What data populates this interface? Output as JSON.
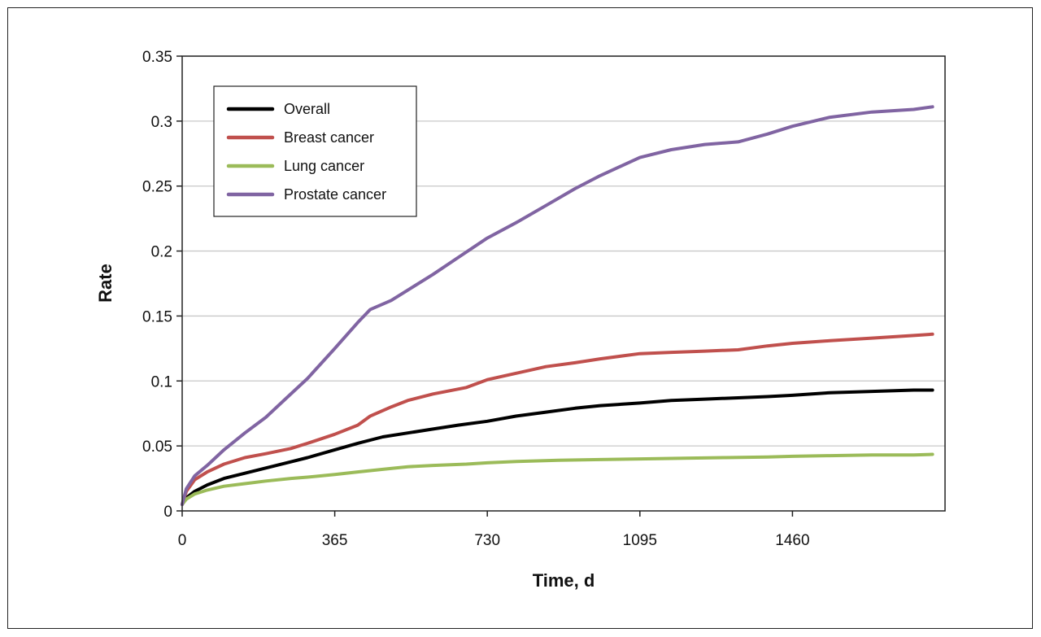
{
  "chart_data": {
    "type": "line",
    "title": "",
    "xlabel": "Time, d",
    "ylabel": "Rate",
    "xlim": [
      0,
      1825
    ],
    "ylim": [
      0,
      0.35
    ],
    "x_ticks": [
      "0",
      "365",
      "730",
      "1095",
      "1460"
    ],
    "x_tick_values": [
      0,
      365,
      730,
      1095,
      1460
    ],
    "y_ticks": [
      "0",
      "0.05",
      "0.1",
      "0.15",
      "0.2",
      "0.25",
      "0.3",
      "0.35"
    ],
    "y_tick_values": [
      0,
      0.05,
      0.1,
      0.15,
      0.2,
      0.25,
      0.3,
      0.35
    ],
    "grid": "horizontal",
    "legend_position": "top-left",
    "series": [
      {
        "name": "Overall",
        "color": "#000000",
        "points": [
          [
            0,
            0.005
          ],
          [
            10,
            0.01
          ],
          [
            30,
            0.015
          ],
          [
            60,
            0.02
          ],
          [
            100,
            0.025
          ],
          [
            150,
            0.029
          ],
          [
            200,
            0.033
          ],
          [
            250,
            0.037
          ],
          [
            300,
            0.041
          ],
          [
            365,
            0.047
          ],
          [
            420,
            0.052
          ],
          [
            480,
            0.057
          ],
          [
            540,
            0.06
          ],
          [
            600,
            0.063
          ],
          [
            660,
            0.066
          ],
          [
            730,
            0.069
          ],
          [
            800,
            0.073
          ],
          [
            870,
            0.076
          ],
          [
            940,
            0.079
          ],
          [
            1000,
            0.081
          ],
          [
            1095,
            0.083
          ],
          [
            1170,
            0.085
          ],
          [
            1250,
            0.086
          ],
          [
            1330,
            0.087
          ],
          [
            1400,
            0.088
          ],
          [
            1460,
            0.089
          ],
          [
            1550,
            0.091
          ],
          [
            1650,
            0.092
          ],
          [
            1750,
            0.093
          ],
          [
            1795,
            0.093
          ]
        ]
      },
      {
        "name": "Breast cancer",
        "color": "#c0504d",
        "points": [
          [
            0,
            0.005
          ],
          [
            10,
            0.015
          ],
          [
            30,
            0.024
          ],
          [
            60,
            0.03
          ],
          [
            100,
            0.036
          ],
          [
            150,
            0.041
          ],
          [
            200,
            0.044
          ],
          [
            260,
            0.048
          ],
          [
            300,
            0.052
          ],
          [
            365,
            0.059
          ],
          [
            420,
            0.066
          ],
          [
            450,
            0.073
          ],
          [
            500,
            0.08
          ],
          [
            540,
            0.085
          ],
          [
            600,
            0.09
          ],
          [
            680,
            0.095
          ],
          [
            730,
            0.101
          ],
          [
            800,
            0.106
          ],
          [
            870,
            0.111
          ],
          [
            940,
            0.114
          ],
          [
            1000,
            0.117
          ],
          [
            1095,
            0.121
          ],
          [
            1170,
            0.122
          ],
          [
            1250,
            0.123
          ],
          [
            1330,
            0.124
          ],
          [
            1400,
            0.127
          ],
          [
            1460,
            0.129
          ],
          [
            1550,
            0.131
          ],
          [
            1650,
            0.133
          ],
          [
            1750,
            0.135
          ],
          [
            1795,
            0.136
          ]
        ]
      },
      {
        "name": "Lung cancer",
        "color": "#9bbb59",
        "points": [
          [
            0,
            0.005
          ],
          [
            10,
            0.009
          ],
          [
            30,
            0.013
          ],
          [
            60,
            0.016
          ],
          [
            100,
            0.019
          ],
          [
            150,
            0.021
          ],
          [
            200,
            0.023
          ],
          [
            260,
            0.025
          ],
          [
            300,
            0.026
          ],
          [
            365,
            0.028
          ],
          [
            420,
            0.03
          ],
          [
            480,
            0.032
          ],
          [
            540,
            0.034
          ],
          [
            600,
            0.035
          ],
          [
            680,
            0.036
          ],
          [
            730,
            0.037
          ],
          [
            800,
            0.038
          ],
          [
            900,
            0.039
          ],
          [
            1000,
            0.0395
          ],
          [
            1095,
            0.04
          ],
          [
            1200,
            0.0405
          ],
          [
            1300,
            0.041
          ],
          [
            1400,
            0.0415
          ],
          [
            1460,
            0.042
          ],
          [
            1550,
            0.0425
          ],
          [
            1650,
            0.043
          ],
          [
            1750,
            0.043
          ],
          [
            1795,
            0.0435
          ]
        ]
      },
      {
        "name": "Prostate cancer",
        "color": "#8064a2",
        "points": [
          [
            0,
            0.005
          ],
          [
            10,
            0.017
          ],
          [
            30,
            0.027
          ],
          [
            60,
            0.035
          ],
          [
            100,
            0.047
          ],
          [
            150,
            0.06
          ],
          [
            200,
            0.072
          ],
          [
            250,
            0.087
          ],
          [
            300,
            0.102
          ],
          [
            365,
            0.125
          ],
          [
            420,
            0.145
          ],
          [
            450,
            0.155
          ],
          [
            500,
            0.162
          ],
          [
            550,
            0.172
          ],
          [
            600,
            0.182
          ],
          [
            660,
            0.195
          ],
          [
            730,
            0.21
          ],
          [
            800,
            0.222
          ],
          [
            870,
            0.235
          ],
          [
            940,
            0.248
          ],
          [
            1000,
            0.258
          ],
          [
            1095,
            0.272
          ],
          [
            1170,
            0.278
          ],
          [
            1250,
            0.282
          ],
          [
            1330,
            0.284
          ],
          [
            1400,
            0.29
          ],
          [
            1460,
            0.296
          ],
          [
            1550,
            0.303
          ],
          [
            1650,
            0.307
          ],
          [
            1750,
            0.309
          ],
          [
            1795,
            0.311
          ]
        ]
      }
    ]
  }
}
